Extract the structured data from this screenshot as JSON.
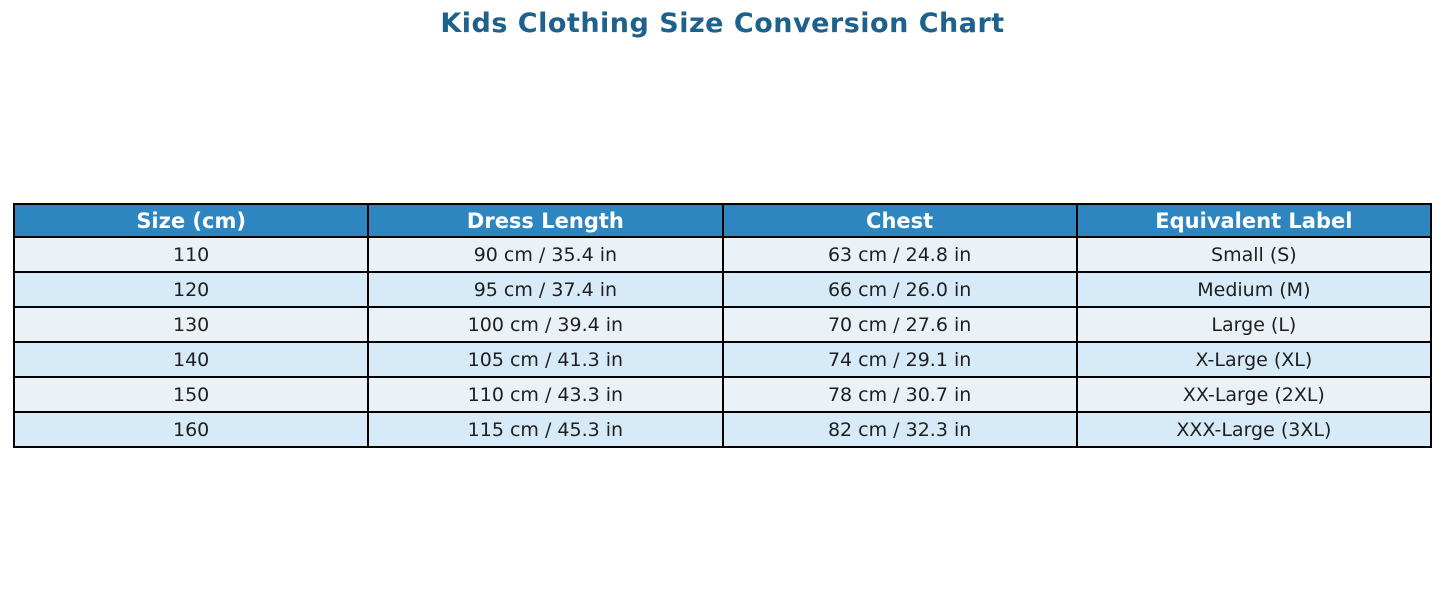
{
  "chart_data": {
    "type": "table",
    "title": "Kids Clothing Size Conversion Chart",
    "columns": [
      "Size (cm)",
      "Dress Length",
      "Chest",
      "Equivalent Label"
    ],
    "rows": [
      [
        "110",
        "90 cm / 35.4 in",
        "63 cm / 24.8 in",
        "Small (S)"
      ],
      [
        "120",
        "95 cm / 37.4 in",
        "66 cm / 26.0 in",
        "Medium (M)"
      ],
      [
        "130",
        "100 cm / 39.4 in",
        "70 cm / 27.6 in",
        "Large (L)"
      ],
      [
        "140",
        "105 cm / 41.3 in",
        "74 cm / 29.1 in",
        "X-Large (XL)"
      ],
      [
        "150",
        "110 cm / 43.3 in",
        "78 cm / 30.7 in",
        "XX-Large (2XL)"
      ],
      [
        "160",
        "115 cm / 45.3 in",
        "82 cm / 32.3 in",
        "XXX-Large (3XL)"
      ]
    ],
    "layout": {
      "legend": "none",
      "grid": "table-borders"
    },
    "colors": {
      "title_text": "#1f618d",
      "header_bg": "#2e86c1",
      "header_text": "#ffffff",
      "row_light": "#eaf2f8",
      "row_dark": "#d6eaf8",
      "border": "#000000",
      "cell_text": "#1f1f1f",
      "background": "#ffffff"
    }
  }
}
